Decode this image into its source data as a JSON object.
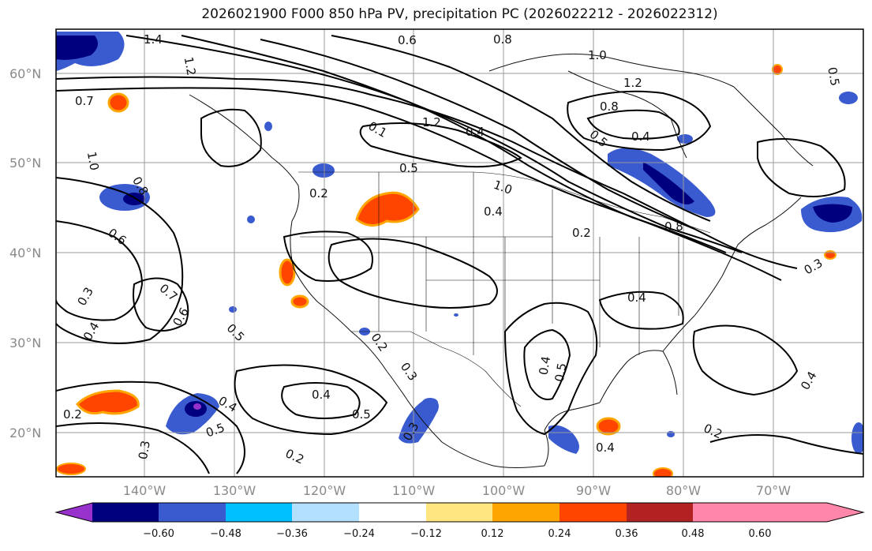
{
  "title": "2026021900 F000 850 hPa PV, precipitation PC (2026022212 - 2026022312)",
  "lat_labels": [
    "60°N",
    "50°N",
    "40°N",
    "30°N",
    "20°N"
  ],
  "lon_labels": [
    "140°W",
    "130°W",
    "120°W",
    "110°W",
    "100°W",
    "90°W",
    "80°W",
    "70°W"
  ],
  "contour_labels": [
    "1.4",
    "1.2",
    "0.6",
    "0.8",
    "1.0",
    "0.5",
    "1.2",
    "0.7",
    "1.0",
    "0.8",
    "0.6",
    "0.2",
    "0.1",
    "1.2",
    "0.4",
    "0.5",
    "1.0",
    "0.4",
    "0.2",
    "0.8",
    "0.8",
    "0.5",
    "0.4",
    "0.4",
    "0.3",
    "0.7",
    "0.6",
    "0.3",
    "0.4",
    "0.4",
    "0.5",
    "0.4",
    "0.2",
    "0.5",
    "0.3",
    "0.2",
    "0.3",
    "0.2",
    "0.4",
    "0.5",
    "0.4",
    "0.2",
    "0.3",
    "0.4",
    "0.5"
  ],
  "colorbar": {
    "ticks": [
      "−0.60",
      "−0.48",
      "−0.36",
      "−0.24",
      "−0.12",
      "0.12",
      "0.24",
      "0.36",
      "0.48",
      "0.60"
    ],
    "colors": [
      "#9932cc",
      "#00007f",
      "#3a5bd0",
      "#00bfff",
      "#b3e0ff",
      "#ffffff",
      "#ffe680",
      "#ffa500",
      "#ff4500",
      "#b22222",
      "#ff88aa"
    ]
  }
}
